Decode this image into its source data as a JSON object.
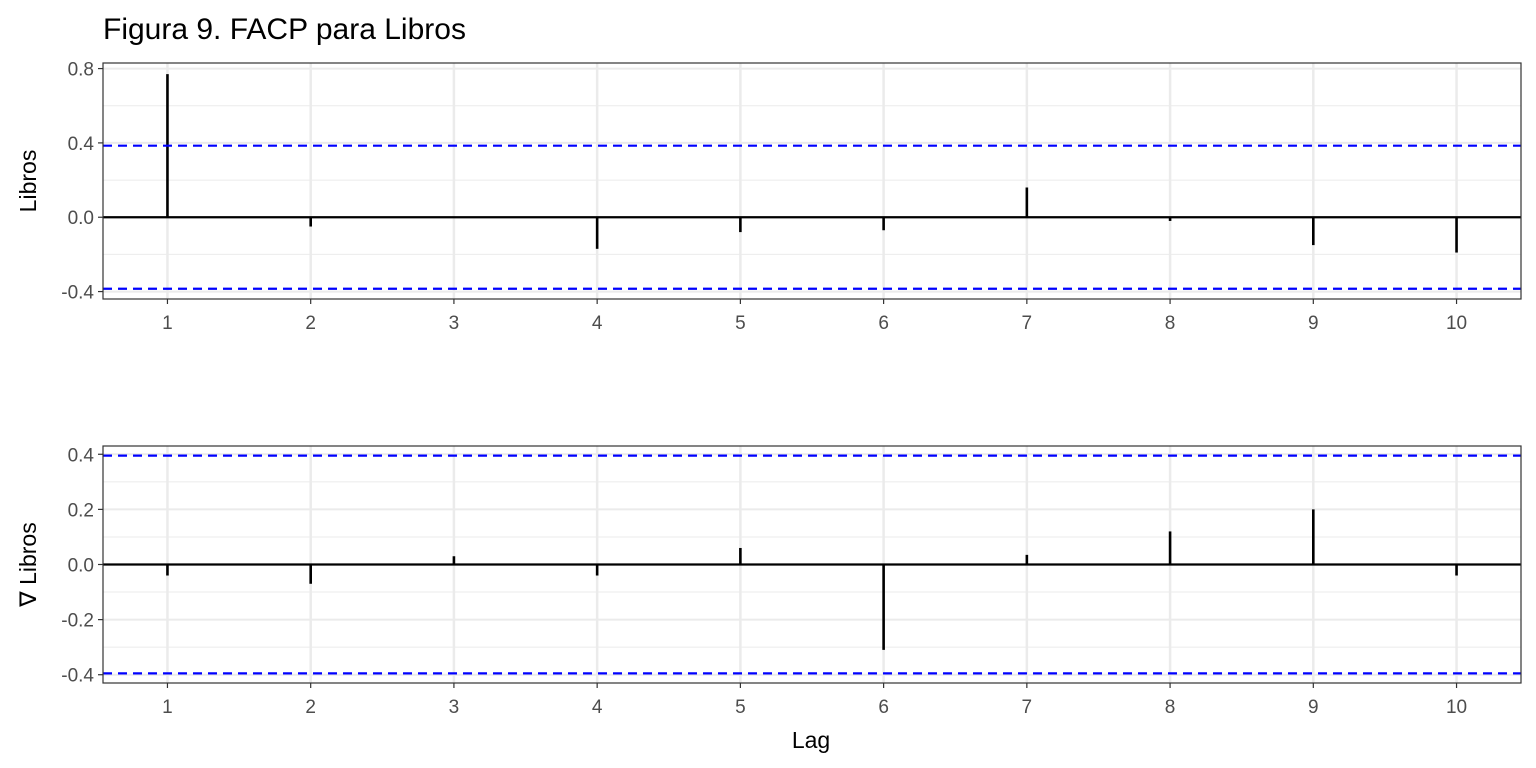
{
  "figure": {
    "title": "Figura 9. FACP para Libros",
    "xlabel": "Lag"
  },
  "chart_data": [
    {
      "type": "bar",
      "subtype": "partial-autocorrelation",
      "ylabel": "Libros",
      "x": [
        1,
        2,
        3,
        4,
        5,
        6,
        7,
        8,
        9,
        10
      ],
      "values": [
        0.77,
        -0.05,
        0.0,
        -0.17,
        -0.08,
        -0.07,
        0.16,
        -0.02,
        -0.15,
        -0.19
      ],
      "confidence_bounds": [
        -0.385,
        0.385
      ],
      "xlim": [
        0.55,
        10.45
      ],
      "ylim": [
        -0.44,
        0.83
      ],
      "xticks": [
        1,
        2,
        3,
        4,
        5,
        6,
        7,
        8,
        9,
        10
      ],
      "yticks": [
        -0.4,
        0.0,
        0.4,
        0.8
      ],
      "ytick_labels": [
        "-0.4",
        "0.0",
        "0.4",
        "0.8"
      ],
      "grid": true,
      "colors": {
        "bars": "#000000",
        "bounds": "#0000ff",
        "grid": "#ebebeb",
        "panel_border": "#333333"
      }
    },
    {
      "type": "bar",
      "subtype": "partial-autocorrelation",
      "ylabel": "∇ Libros",
      "x": [
        1,
        2,
        3,
        4,
        5,
        6,
        7,
        8,
        9,
        10
      ],
      "values": [
        -0.04,
        -0.07,
        0.03,
        -0.04,
        0.06,
        -0.31,
        0.035,
        0.12,
        0.2,
        -0.04
      ],
      "confidence_bounds": [
        -0.395,
        0.395
      ],
      "xlim": [
        0.55,
        10.45
      ],
      "ylim": [
        -0.43,
        0.43
      ],
      "xticks": [
        1,
        2,
        3,
        4,
        5,
        6,
        7,
        8,
        9,
        10
      ],
      "yticks": [
        -0.4,
        -0.2,
        0.0,
        0.2,
        0.4
      ],
      "ytick_labels": [
        "-0.4",
        "-0.2",
        "0.0",
        "0.2",
        "0.4"
      ],
      "grid": true,
      "colors": {
        "bars": "#000000",
        "bounds": "#0000ff",
        "grid": "#ebebeb",
        "panel_border": "#333333"
      }
    }
  ]
}
